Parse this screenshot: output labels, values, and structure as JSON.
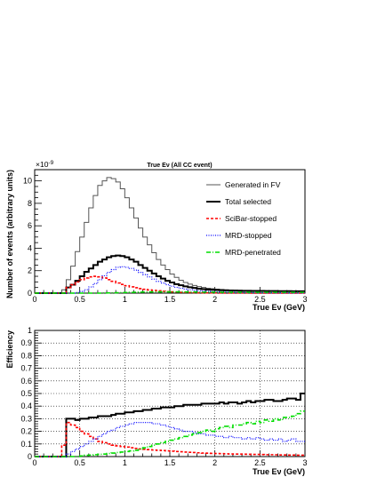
{
  "chart_data": [
    {
      "type": "line",
      "title": "True Eν (All CC event)",
      "xlabel": "True Eν (GeV)",
      "ylabel": "Number of events (arbitrary units)",
      "y_multiplier_label": "×10",
      "y_multiplier_exponent": "-9",
      "xlim": [
        0,
        3
      ],
      "ylim": [
        0,
        11
      ],
      "grid": false,
      "legend_position": "top-right",
      "x_ticks": [
        0,
        0.5,
        1,
        1.5,
        2,
        2.5,
        3
      ],
      "x_tick_labels": [
        "0",
        "0.5",
        "1",
        "1.5",
        "2",
        "2.5",
        "3"
      ],
      "y_ticks": [
        0,
        2,
        4,
        6,
        8,
        10
      ],
      "y_tick_labels": [
        "0",
        "2",
        "4",
        "6",
        "8",
        "10"
      ],
      "bin_edges": [
        0,
        0.05,
        0.1,
        0.15,
        0.2,
        0.25,
        0.3,
        0.35,
        0.4,
        0.45,
        0.5,
        0.55,
        0.6,
        0.65,
        0.7,
        0.75,
        0.8,
        0.85,
        0.9,
        0.95,
        1.0,
        1.05,
        1.1,
        1.15,
        1.2,
        1.25,
        1.3,
        1.35,
        1.4,
        1.45,
        1.5,
        1.55,
        1.6,
        1.65,
        1.7,
        1.75,
        1.8,
        1.85,
        1.9,
        1.95,
        2.0,
        2.05,
        2.1,
        2.15,
        2.2,
        2.25,
        2.3,
        2.35,
        2.4,
        2.45,
        2.5,
        2.55,
        2.6,
        2.65,
        2.7,
        2.75,
        2.8,
        2.85,
        2.9,
        2.95,
        3.0
      ],
      "series": [
        {
          "name": "Generated in FV",
          "color": "#555555",
          "dash": "",
          "width": 1,
          "values": [
            0,
            0,
            0,
            0,
            0,
            0,
            0.3,
            1.2,
            2.4,
            3.7,
            5.0,
            6.3,
            7.6,
            8.7,
            9.6,
            10.0,
            10.3,
            10.2,
            9.9,
            9.3,
            8.5,
            7.6,
            6.7,
            5.8,
            5.0,
            4.3,
            3.6,
            3.0,
            2.5,
            2.1,
            1.7,
            1.4,
            1.15,
            0.95,
            0.8,
            0.68,
            0.58,
            0.5,
            0.44,
            0.4,
            0.36,
            0.33,
            0.3,
            0.28,
            0.26,
            0.25,
            0.24,
            0.23,
            0.22,
            0.22,
            0.21,
            0.21,
            0.2,
            0.2,
            0.2,
            0.19,
            0.19,
            0.19,
            0.18,
            0.18
          ]
        },
        {
          "name": "Total selected",
          "color": "#000000",
          "dash": "",
          "width": 2,
          "values": [
            0,
            0,
            0,
            0,
            0,
            0,
            0,
            0.5,
            0.75,
            1.1,
            1.5,
            1.9,
            2.2,
            2.5,
            2.8,
            3.0,
            3.2,
            3.3,
            3.35,
            3.3,
            3.2,
            3.0,
            2.8,
            2.5,
            2.25,
            2.0,
            1.75,
            1.5,
            1.3,
            1.1,
            0.95,
            0.8,
            0.7,
            0.6,
            0.52,
            0.46,
            0.4,
            0.36,
            0.32,
            0.3,
            0.28,
            0.26,
            0.25,
            0.24,
            0.23,
            0.22,
            0.21,
            0.21,
            0.2,
            0.2,
            0.2,
            0.19,
            0.19,
            0.19,
            0.18,
            0.18,
            0.18,
            0.17,
            0.17,
            0.17
          ]
        },
        {
          "name": "SciBar-stopped",
          "color": "#ff0000",
          "dash": "3,2",
          "width": 1.6,
          "values": [
            0,
            0,
            0,
            0,
            0,
            0,
            0,
            0.5,
            0.75,
            1.0,
            1.2,
            1.35,
            1.45,
            1.5,
            1.45,
            1.35,
            1.2,
            1.05,
            0.9,
            0.78,
            0.66,
            0.56,
            0.48,
            0.4,
            0.34,
            0.28,
            0.24,
            0.2,
            0.16,
            0.13,
            0.11,
            0.09,
            0.07,
            0.06,
            0.05,
            0.04,
            0.03,
            0.03,
            0.02,
            0.02,
            0.02,
            0.01,
            0.01,
            0.01,
            0.01,
            0.01,
            0.01,
            0.01,
            0,
            0,
            0,
            0,
            0,
            0,
            0,
            0,
            0,
            0,
            0,
            0
          ]
        },
        {
          "name": "MRD-stopped",
          "color": "#0000ff",
          "dash": "1,1.5",
          "width": 1.2,
          "values": [
            0,
            0,
            0,
            0,
            0,
            0,
            0,
            0,
            0,
            0.05,
            0.15,
            0.3,
            0.55,
            0.85,
            1.2,
            1.55,
            1.85,
            2.1,
            2.3,
            2.35,
            2.3,
            2.2,
            2.05,
            1.85,
            1.65,
            1.45,
            1.25,
            1.05,
            0.9,
            0.75,
            0.62,
            0.52,
            0.43,
            0.36,
            0.3,
            0.25,
            0.21,
            0.18,
            0.15,
            0.13,
            0.11,
            0.1,
            0.09,
            0.08,
            0.07,
            0.06,
            0.06,
            0.05,
            0.05,
            0.04,
            0.04,
            0.04,
            0.03,
            0.03,
            0.03,
            0.03,
            0.03,
            0.02,
            0.02,
            0.02
          ]
        },
        {
          "name": "MRD-penetrated",
          "color": "#00dd00",
          "dash": "5,2,1,2",
          "width": 1.6,
          "values": [
            0,
            0,
            0,
            0,
            0,
            0,
            0,
            0,
            0,
            0,
            0,
            0,
            0,
            0,
            0,
            0.01,
            0.02,
            0.03,
            0.04,
            0.05,
            0.06,
            0.07,
            0.08,
            0.09,
            0.1,
            0.1,
            0.11,
            0.11,
            0.11,
            0.11,
            0.11,
            0.11,
            0.11,
            0.1,
            0.1,
            0.1,
            0.09,
            0.09,
            0.09,
            0.09,
            0.08,
            0.08,
            0.08,
            0.08,
            0.08,
            0.08,
            0.08,
            0.08,
            0.08,
            0.08,
            0.08,
            0.08,
            0.08,
            0.08,
            0.08,
            0.08,
            0.08,
            0.08,
            0.08,
            0.08
          ]
        }
      ]
    },
    {
      "type": "line",
      "title": "",
      "xlabel": "True Eν (GeV)",
      "ylabel": "Efficiency",
      "xlim": [
        0,
        3
      ],
      "ylim": [
        0,
        1
      ],
      "grid": true,
      "x_ticks": [
        0,
        0.5,
        1,
        1.5,
        2,
        2.5,
        3
      ],
      "x_tick_labels": [
        "0",
        "0.5",
        "1",
        "1.5",
        "2",
        "2.5",
        "3"
      ],
      "y_ticks": [
        0,
        0.1,
        0.2,
        0.3,
        0.4,
        0.5,
        0.6,
        0.7,
        0.8,
        0.9,
        1
      ],
      "y_tick_labels": [
        "0",
        "0.1",
        "0.2",
        "0.3",
        "0.4",
        "0.5",
        "0.6",
        "0.7",
        "0.8",
        "0.9",
        "1"
      ],
      "bin_edges": [
        0,
        0.05,
        0.1,
        0.15,
        0.2,
        0.25,
        0.3,
        0.35,
        0.4,
        0.45,
        0.5,
        0.55,
        0.6,
        0.65,
        0.7,
        0.75,
        0.8,
        0.85,
        0.9,
        0.95,
        1.0,
        1.05,
        1.1,
        1.15,
        1.2,
        1.25,
        1.3,
        1.35,
        1.4,
        1.45,
        1.5,
        1.55,
        1.6,
        1.65,
        1.7,
        1.75,
        1.8,
        1.85,
        1.9,
        1.95,
        2.0,
        2.05,
        2.1,
        2.15,
        2.2,
        2.25,
        2.3,
        2.35,
        2.4,
        2.45,
        2.5,
        2.55,
        2.6,
        2.65,
        2.7,
        2.75,
        2.8,
        2.85,
        2.9,
        2.95,
        3.0
      ],
      "series": [
        {
          "name": "Total selected",
          "color": "#000000",
          "dash": "",
          "width": 2,
          "values": [
            0,
            0,
            0,
            0,
            0,
            0,
            0,
            0.3,
            0.3,
            0.29,
            0.3,
            0.3,
            0.31,
            0.31,
            0.32,
            0.32,
            0.32,
            0.33,
            0.34,
            0.34,
            0.35,
            0.35,
            0.36,
            0.36,
            0.37,
            0.37,
            0.38,
            0.38,
            0.39,
            0.39,
            0.39,
            0.4,
            0.4,
            0.41,
            0.41,
            0.41,
            0.41,
            0.42,
            0.42,
            0.42,
            0.42,
            0.43,
            0.42,
            0.43,
            0.43,
            0.42,
            0.43,
            0.44,
            0.43,
            0.44,
            0.44,
            0.45,
            0.45,
            0.44,
            0.44,
            0.45,
            0.46,
            0.46,
            0.45,
            0.5
          ]
        },
        {
          "name": "SciBar-stopped",
          "color": "#ff0000",
          "dash": "3,2",
          "width": 1.6,
          "values": [
            0,
            0,
            0,
            0,
            0,
            0,
            0.09,
            0.27,
            0.25,
            0.23,
            0.2,
            0.18,
            0.16,
            0.14,
            0.12,
            0.11,
            0.1,
            0.09,
            0.085,
            0.08,
            0.075,
            0.07,
            0.065,
            0.06,
            0.058,
            0.055,
            0.052,
            0.05,
            0.048,
            0.045,
            0.043,
            0.04,
            0.038,
            0.036,
            0.034,
            0.032,
            0.03,
            0.028,
            0.027,
            0.025,
            0.024,
            0.023,
            0.022,
            0.021,
            0.02,
            0.02,
            0.019,
            0.018,
            0.017,
            0.017,
            0.016,
            0.015,
            0.015,
            0.014,
            0.013,
            0.013,
            0.012,
            0.012,
            0.011,
            0.011
          ]
        },
        {
          "name": "MRD-stopped",
          "color": "#0000ff",
          "dash": "1,1.5",
          "width": 1.2,
          "values": [
            0,
            0,
            0,
            0,
            0,
            0,
            0,
            0.02,
            0.04,
            0.06,
            0.08,
            0.1,
            0.12,
            0.14,
            0.16,
            0.18,
            0.2,
            0.21,
            0.23,
            0.24,
            0.25,
            0.26,
            0.27,
            0.27,
            0.27,
            0.27,
            0.26,
            0.26,
            0.25,
            0.24,
            0.23,
            0.22,
            0.21,
            0.2,
            0.2,
            0.19,
            0.18,
            0.18,
            0.17,
            0.17,
            0.16,
            0.16,
            0.15,
            0.16,
            0.15,
            0.15,
            0.14,
            0.15,
            0.14,
            0.15,
            0.14,
            0.13,
            0.14,
            0.13,
            0.14,
            0.12,
            0.13,
            0.14,
            0.12,
            0.12
          ]
        },
        {
          "name": "MRD-penetrated",
          "color": "#00dd00",
          "dash": "5,2,1,2",
          "width": 1.6,
          "values": [
            0,
            0,
            0,
            0,
            0,
            0,
            0,
            0,
            0,
            0,
            0.005,
            0.01,
            0.012,
            0.015,
            0.018,
            0.02,
            0.024,
            0.028,
            0.032,
            0.036,
            0.04,
            0.045,
            0.05,
            0.06,
            0.07,
            0.08,
            0.09,
            0.1,
            0.11,
            0.12,
            0.13,
            0.14,
            0.15,
            0.16,
            0.17,
            0.18,
            0.19,
            0.2,
            0.21,
            0.2,
            0.22,
            0.23,
            0.24,
            0.23,
            0.25,
            0.25,
            0.26,
            0.27,
            0.26,
            0.28,
            0.27,
            0.29,
            0.28,
            0.3,
            0.29,
            0.31,
            0.31,
            0.32,
            0.34,
            0.36
          ]
        }
      ]
    }
  ]
}
